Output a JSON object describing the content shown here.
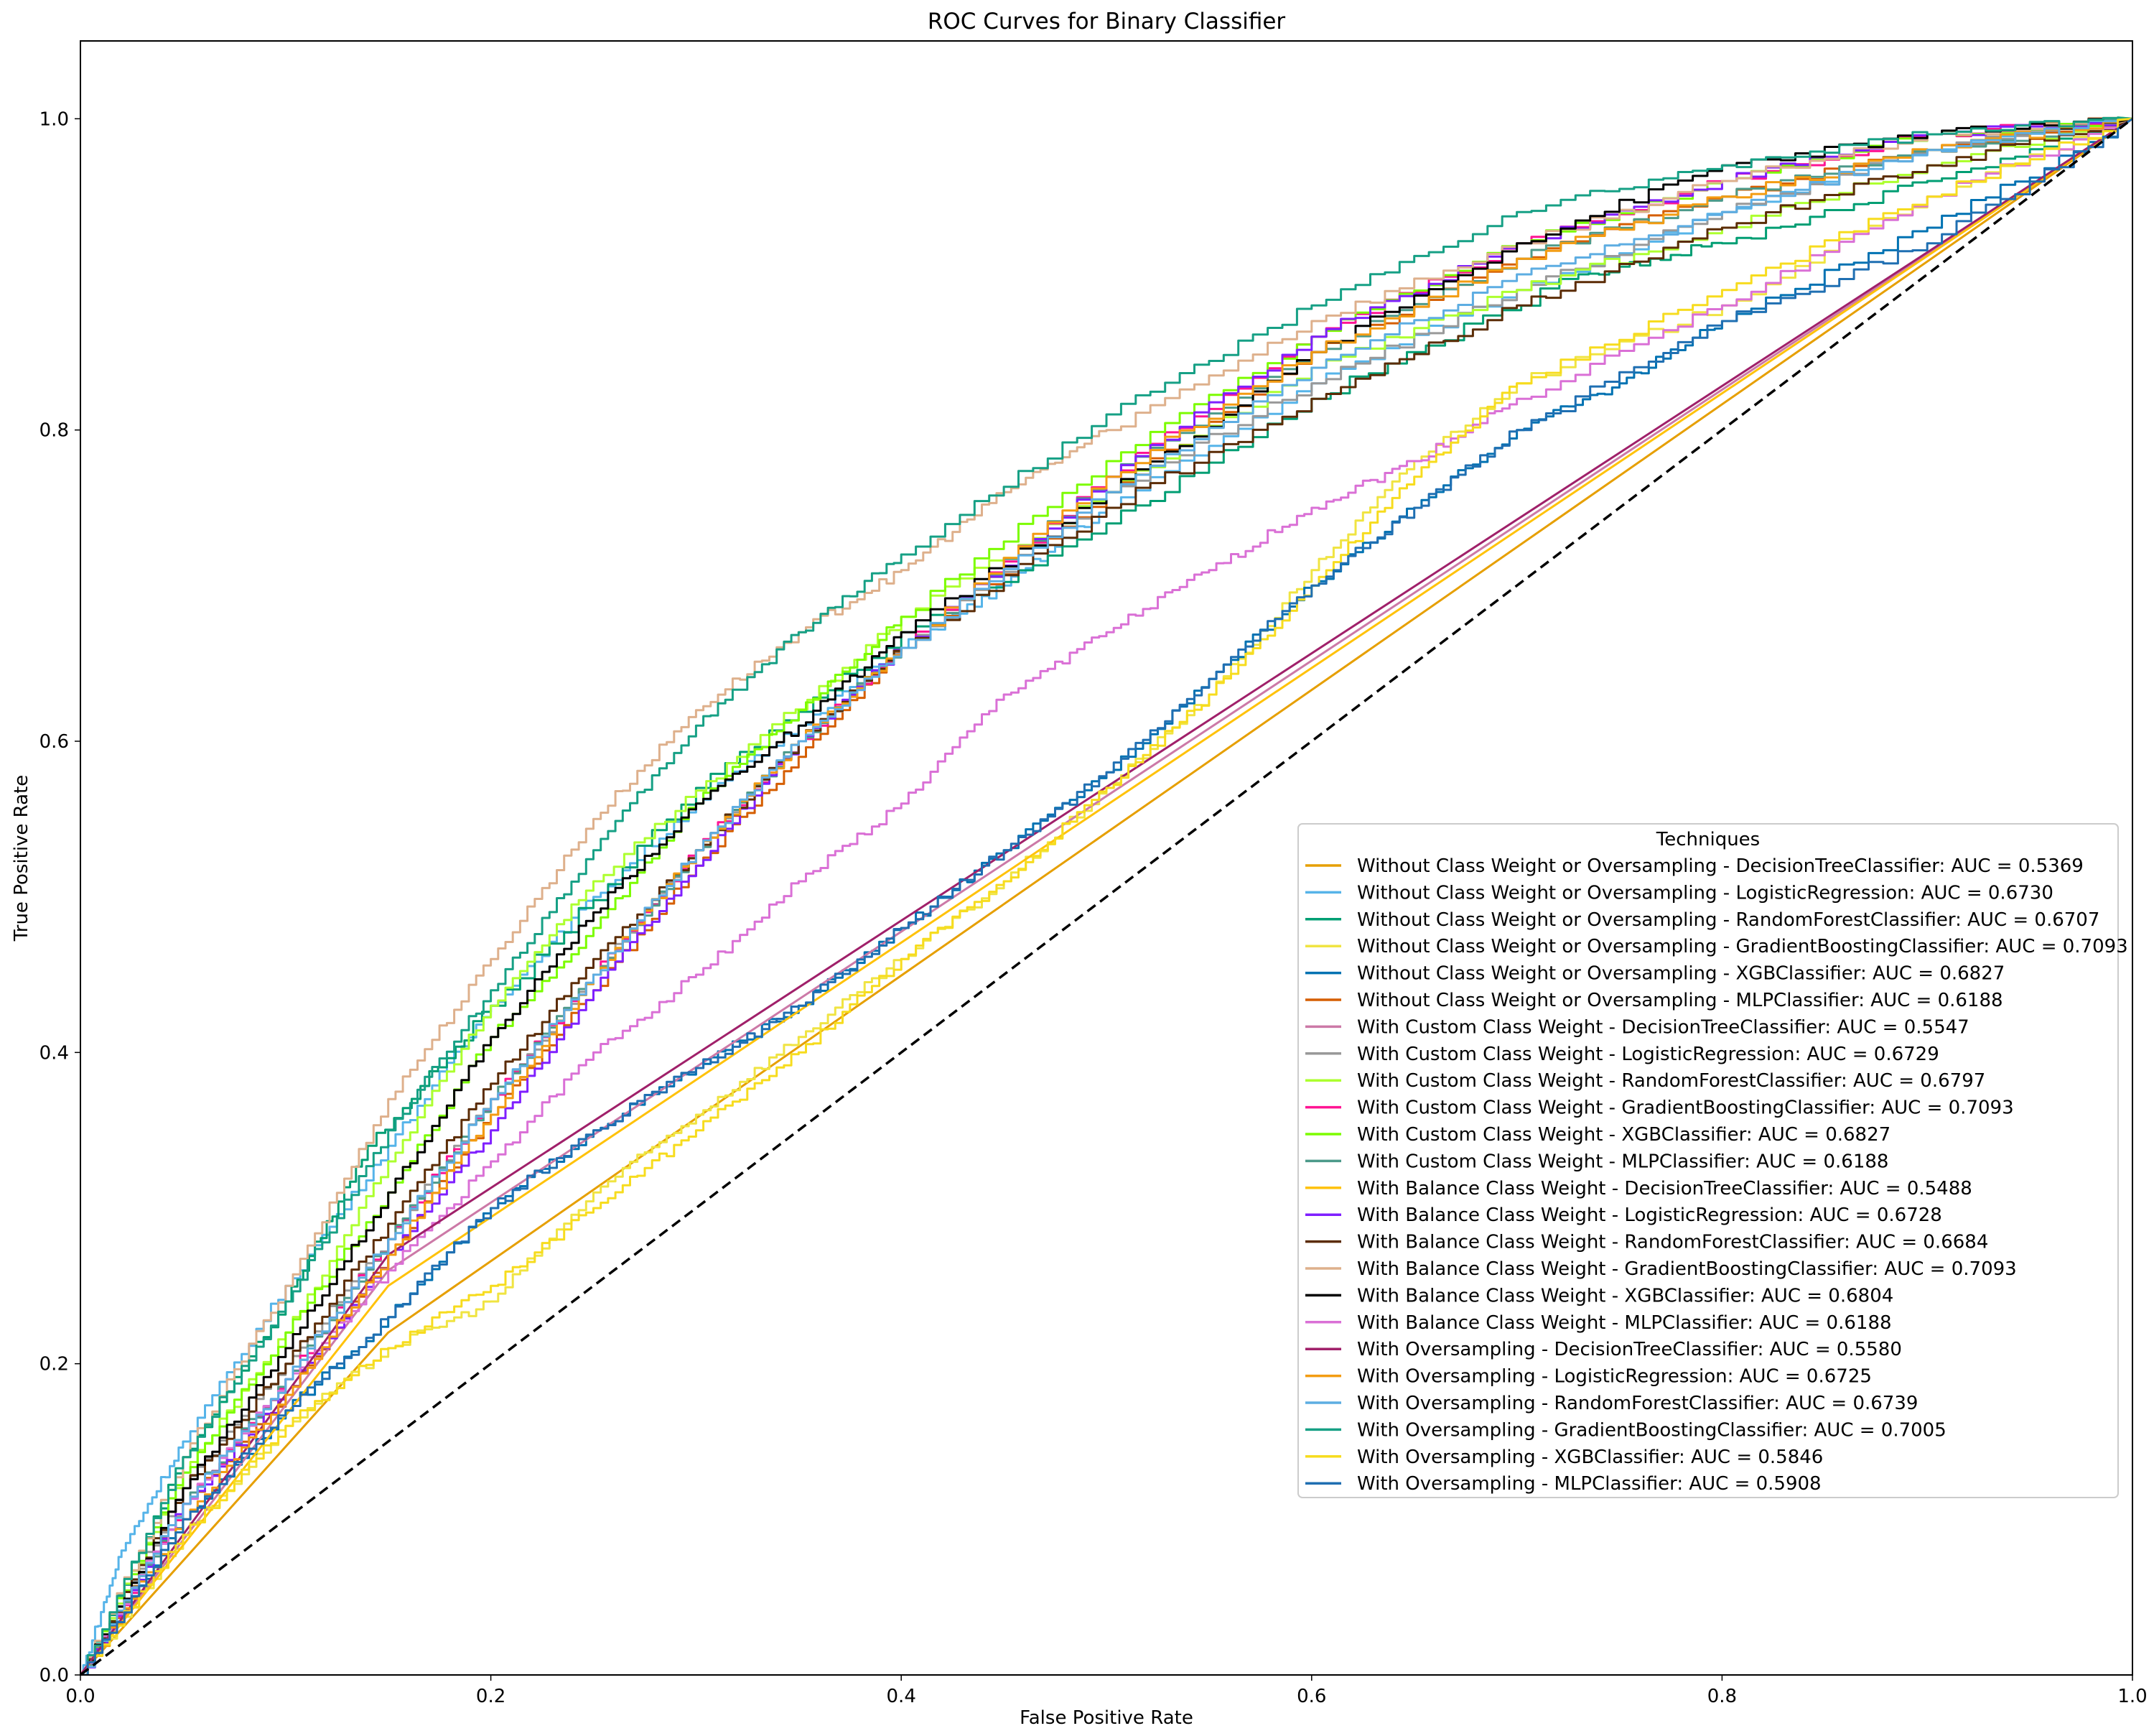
{
  "chart_data": {
    "type": "line",
    "title": "ROC Curves for Binary Classifier",
    "xlabel": "False Positive Rate",
    "ylabel": "True Positive Rate",
    "xlim": [
      0.0,
      1.0
    ],
    "ylim": [
      0.0,
      1.05
    ],
    "xticks": [
      "0.0",
      "0.2",
      "0.4",
      "0.6",
      "0.8",
      "1.0"
    ],
    "yticks": [
      "0.0",
      "0.2",
      "0.4",
      "0.6",
      "0.8",
      "1.0"
    ],
    "grid": false,
    "legend": {
      "title": "Techniques",
      "placement": "center-right"
    },
    "diagonal": {
      "style": "dashed",
      "color": "#000000",
      "x": [
        0,
        1
      ],
      "y": [
        0,
        1
      ]
    },
    "series": [
      {
        "name": "Without Class Weight or Oversampling - DecisionTreeClassifier: AUC = 0.5369",
        "color": "#e69f00",
        "x": [
          0,
          0.15,
          1
        ],
        "y": [
          0,
          0.22,
          1
        ]
      },
      {
        "name": "Without Class Weight or Oversampling - LogisticRegression: AUC = 0.6730",
        "color": "#56b4e9",
        "x": [
          0,
          0.02,
          0.05,
          0.1,
          0.15,
          0.2,
          0.25,
          0.3,
          0.35,
          0.4,
          0.45,
          0.5,
          0.6,
          0.7,
          0.8,
          0.9,
          1
        ],
        "y": [
          0,
          0.08,
          0.15,
          0.25,
          0.34,
          0.43,
          0.5,
          0.56,
          0.61,
          0.66,
          0.7,
          0.75,
          0.83,
          0.89,
          0.94,
          0.98,
          1
        ]
      },
      {
        "name": "Without Class Weight or Oversampling - RandomForestClassifier: AUC = 0.6707",
        "color": "#009e73",
        "x": [
          0,
          0.05,
          0.1,
          0.14,
          0.2,
          0.3,
          0.4,
          0.5,
          0.6,
          0.73,
          0.8,
          0.9,
          1
        ],
        "y": [
          0,
          0.14,
          0.24,
          0.34,
          0.43,
          0.57,
          0.67,
          0.74,
          0.82,
          0.9,
          0.92,
          0.96,
          1
        ]
      },
      {
        "name": "Without Class Weight or Oversampling - GradientBoostingClassifier: AUC = 0.7093",
        "color": "#f0e442",
        "x": [
          0,
          0.05,
          0.1,
          0.15,
          0.2,
          0.25,
          0.3,
          0.35,
          0.4,
          0.45,
          0.5,
          0.55,
          0.6,
          0.65,
          0.7,
          0.8,
          0.9,
          1
        ],
        "y": [
          0,
          0.09,
          0.16,
          0.21,
          0.24,
          0.31,
          0.36,
          0.41,
          0.46,
          0.51,
          0.57,
          0.63,
          0.71,
          0.78,
          0.83,
          0.88,
          0.95,
          1
        ]
      },
      {
        "name": "Without Class Weight or Oversampling - XGBClassifier: AUC = 0.6827",
        "color": "#0072b2",
        "x": [
          0,
          0.05,
          0.1,
          0.15,
          0.2,
          0.25,
          0.3,
          0.35,
          0.4,
          0.45,
          0.5,
          0.55,
          0.6,
          0.65,
          0.7,
          0.75,
          0.8,
          0.9,
          1
        ],
        "y": [
          0,
          0.1,
          0.17,
          0.23,
          0.3,
          0.35,
          0.39,
          0.43,
          0.48,
          0.53,
          0.58,
          0.64,
          0.7,
          0.75,
          0.8,
          0.83,
          0.87,
          0.93,
          1
        ]
      },
      {
        "name": "Without Class Weight or Oversampling - MLPClassifier: AUC = 0.6188",
        "color": "#d55e00",
        "x": [
          0,
          0.05,
          0.1,
          0.15,
          0.2,
          0.25,
          0.3,
          0.35,
          0.4,
          0.5,
          0.6,
          0.7,
          0.8,
          0.9,
          1
        ],
        "y": [
          0,
          0.11,
          0.18,
          0.27,
          0.36,
          0.44,
          0.52,
          0.59,
          0.66,
          0.76,
          0.85,
          0.91,
          0.95,
          0.98,
          1
        ]
      },
      {
        "name": "With Custom Class Weight - DecisionTreeClassifier: AUC = 0.5547",
        "color": "#cc79a7",
        "x": [
          0,
          0.15,
          1
        ],
        "y": [
          0,
          0.26,
          1
        ]
      },
      {
        "name": "With Custom Class Weight - LogisticRegression: AUC = 0.6729",
        "color": "#999999",
        "x": [
          0,
          0.05,
          0.1,
          0.15,
          0.2,
          0.25,
          0.3,
          0.35,
          0.4,
          0.5,
          0.6,
          0.7,
          0.8,
          0.9,
          1
        ],
        "y": [
          0,
          0.12,
          0.2,
          0.28,
          0.37,
          0.45,
          0.53,
          0.6,
          0.66,
          0.76,
          0.83,
          0.89,
          0.94,
          0.98,
          1
        ]
      },
      {
        "name": "With Custom Class Weight - RandomForestClassifier: AUC = 0.6797",
        "color": "#adff2f",
        "x": [
          0,
          0.05,
          0.1,
          0.15,
          0.2,
          0.25,
          0.32,
          0.4,
          0.5,
          0.6,
          0.7,
          0.8,
          0.9,
          1
        ],
        "y": [
          0,
          0.13,
          0.22,
          0.33,
          0.43,
          0.51,
          0.59,
          0.68,
          0.76,
          0.84,
          0.89,
          0.93,
          0.97,
          1
        ]
      },
      {
        "name": "With Custom Class Weight - GradientBoostingClassifier: AUC = 0.7093",
        "color": "#ff1493",
        "x": [
          0,
          0.05,
          0.1,
          0.15,
          0.2,
          0.25,
          0.3,
          0.35,
          0.4,
          0.5,
          0.6,
          0.7,
          0.8,
          0.9,
          1
        ],
        "y": [
          0,
          0.11,
          0.19,
          0.28,
          0.37,
          0.45,
          0.53,
          0.6,
          0.66,
          0.77,
          0.86,
          0.92,
          0.96,
          0.99,
          1
        ]
      },
      {
        "name": "With Custom Class Weight - XGBClassifier: AUC = 0.6827",
        "color": "#7cfc00",
        "x": [
          0,
          0.05,
          0.1,
          0.15,
          0.2,
          0.25,
          0.3,
          0.35,
          0.4,
          0.5,
          0.6,
          0.7,
          0.8,
          0.9,
          1
        ],
        "y": [
          0,
          0.13,
          0.22,
          0.31,
          0.41,
          0.48,
          0.56,
          0.62,
          0.68,
          0.78,
          0.86,
          0.92,
          0.96,
          0.99,
          1
        ]
      },
      {
        "name": "With Custom Class Weight - MLPClassifier: AUC = 0.6188",
        "color": "#4c9a8a",
        "x": [
          0,
          0.05,
          0.1,
          0.15,
          0.2,
          0.25,
          0.3,
          0.35,
          0.4,
          0.5,
          0.6,
          0.7,
          0.8,
          0.9,
          1
        ],
        "y": [
          0,
          0.11,
          0.19,
          0.28,
          0.37,
          0.45,
          0.53,
          0.6,
          0.66,
          0.77,
          0.85,
          0.91,
          0.95,
          0.98,
          1
        ]
      },
      {
        "name": "With Balance Class Weight - DecisionTreeClassifier: AUC = 0.5488",
        "color": "#ffc20a",
        "x": [
          0,
          0.15,
          1
        ],
        "y": [
          0,
          0.25,
          1
        ]
      },
      {
        "name": "With Balance Class Weight - LogisticRegression: AUC = 0.6728",
        "color": "#7f1fff",
        "x": [
          0,
          0.05,
          0.1,
          0.15,
          0.2,
          0.25,
          0.3,
          0.35,
          0.4,
          0.5,
          0.6,
          0.7,
          0.8,
          0.9,
          1
        ],
        "y": [
          0,
          0.11,
          0.18,
          0.27,
          0.35,
          0.44,
          0.52,
          0.6,
          0.66,
          0.77,
          0.86,
          0.92,
          0.96,
          0.99,
          1
        ]
      },
      {
        "name": "With Balance Class Weight - RandomForestClassifier: AUC = 0.6684",
        "color": "#5b2c06",
        "x": [
          0,
          0.05,
          0.1,
          0.15,
          0.2,
          0.25,
          0.3,
          0.35,
          0.4,
          0.5,
          0.6,
          0.7,
          0.8,
          0.9,
          1
        ],
        "y": [
          0,
          0.12,
          0.2,
          0.29,
          0.38,
          0.46,
          0.53,
          0.6,
          0.66,
          0.75,
          0.82,
          0.88,
          0.93,
          0.97,
          1
        ]
      },
      {
        "name": "With Balance Class Weight - GradientBoostingClassifier: AUC = 0.7093",
        "color": "#deb08c",
        "x": [
          0,
          0.05,
          0.1,
          0.15,
          0.2,
          0.25,
          0.3,
          0.35,
          0.4,
          0.45,
          0.5,
          0.6,
          0.7,
          0.8,
          0.9,
          1
        ],
        "y": [
          0,
          0.14,
          0.25,
          0.37,
          0.46,
          0.55,
          0.62,
          0.67,
          0.71,
          0.76,
          0.8,
          0.87,
          0.92,
          0.96,
          0.99,
          1
        ]
      },
      {
        "name": "With Balance Class Weight - XGBClassifier: AUC = 0.6804",
        "color": "#000000",
        "x": [
          0,
          0.05,
          0.1,
          0.15,
          0.2,
          0.25,
          0.3,
          0.35,
          0.4,
          0.5,
          0.6,
          0.7,
          0.8,
          0.9,
          1
        ],
        "y": [
          0,
          0.12,
          0.21,
          0.31,
          0.41,
          0.49,
          0.56,
          0.61,
          0.67,
          0.76,
          0.85,
          0.92,
          0.97,
          0.99,
          1
        ]
      },
      {
        "name": "With Balance Class Weight - MLPClassifier: AUC = 0.6188",
        "color": "#da70d6",
        "x": [
          0,
          0.05,
          0.1,
          0.15,
          0.2,
          0.25,
          0.3,
          0.35,
          0.4,
          0.45,
          0.5,
          0.55,
          0.6,
          0.65,
          0.7,
          0.8,
          0.9,
          1
        ],
        "y": [
          0,
          0.11,
          0.19,
          0.26,
          0.33,
          0.4,
          0.45,
          0.51,
          0.56,
          0.63,
          0.67,
          0.71,
          0.75,
          0.78,
          0.82,
          0.88,
          0.95,
          1
        ]
      },
      {
        "name": "With Oversampling - DecisionTreeClassifier: AUC = 0.5580",
        "color": "#a0206a",
        "x": [
          0,
          0.15,
          1
        ],
        "y": [
          0,
          0.27,
          1
        ]
      },
      {
        "name": "With Oversampling - LogisticRegression: AUC = 0.6725",
        "color": "#f39c12",
        "x": [
          0,
          0.05,
          0.1,
          0.15,
          0.2,
          0.25,
          0.3,
          0.35,
          0.4,
          0.5,
          0.6,
          0.7,
          0.8,
          0.9,
          1
        ],
        "y": [
          0,
          0.1,
          0.18,
          0.27,
          0.36,
          0.45,
          0.53,
          0.6,
          0.66,
          0.77,
          0.85,
          0.91,
          0.95,
          0.98,
          1
        ]
      },
      {
        "name": "With Oversampling - RandomForestClassifier: AUC = 0.6739",
        "color": "#5dade2",
        "x": [
          0,
          0.05,
          0.1,
          0.15,
          0.2,
          0.25,
          0.3,
          0.35,
          0.4,
          0.5,
          0.6,
          0.7,
          0.8,
          0.9,
          1
        ],
        "y": [
          0,
          0.11,
          0.19,
          0.28,
          0.37,
          0.45,
          0.53,
          0.6,
          0.66,
          0.76,
          0.84,
          0.9,
          0.94,
          0.98,
          1
        ]
      },
      {
        "name": "With Oversampling - GradientBoostingClassifier: AUC = 0.7005",
        "color": "#16a085",
        "x": [
          0,
          0.05,
          0.1,
          0.15,
          0.2,
          0.25,
          0.3,
          0.35,
          0.4,
          0.5,
          0.6,
          0.7,
          0.8,
          0.9,
          1
        ],
        "y": [
          0,
          0.14,
          0.24,
          0.35,
          0.44,
          0.53,
          0.61,
          0.67,
          0.72,
          0.81,
          0.88,
          0.94,
          0.97,
          0.99,
          1
        ]
      },
      {
        "name": "With Oversampling - XGBClassifier: AUC = 0.5846",
        "color": "#f7dc1e",
        "x": [
          0,
          0.05,
          0.1,
          0.15,
          0.2,
          0.25,
          0.3,
          0.35,
          0.4,
          0.45,
          0.5,
          0.55,
          0.6,
          0.65,
          0.7,
          0.8,
          0.9,
          1
        ],
        "y": [
          0,
          0.09,
          0.16,
          0.21,
          0.25,
          0.3,
          0.35,
          0.4,
          0.46,
          0.51,
          0.57,
          0.63,
          0.7,
          0.77,
          0.83,
          0.89,
          0.95,
          1
        ]
      },
      {
        "name": "With Oversampling - MLPClassifier: AUC = 0.5908",
        "color": "#1f6fb2",
        "x": [
          0,
          0.05,
          0.1,
          0.15,
          0.2,
          0.25,
          0.3,
          0.35,
          0.4,
          0.45,
          0.5,
          0.55,
          0.6,
          0.65,
          0.7,
          0.8,
          0.9,
          1
        ],
        "y": [
          0,
          0.1,
          0.17,
          0.23,
          0.3,
          0.35,
          0.39,
          0.43,
          0.48,
          0.53,
          0.58,
          0.64,
          0.7,
          0.75,
          0.8,
          0.87,
          0.92,
          1
        ]
      }
    ]
  }
}
